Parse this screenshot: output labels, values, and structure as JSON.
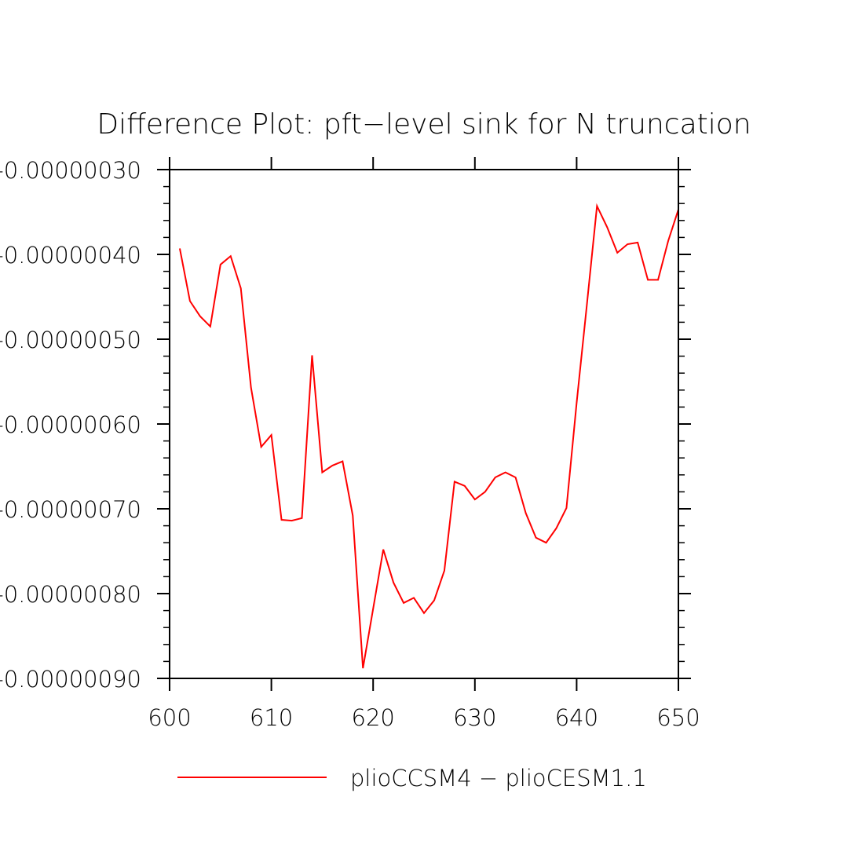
{
  "chart_data": {
    "type": "line",
    "title": "Difference Plot: pft−level sink for N truncation",
    "xlabel": "",
    "ylabel": "",
    "xlim": [
      600,
      650
    ],
    "ylim": [
      -9e-07,
      -3e-07
    ],
    "x_ticks": [
      "600",
      "610",
      "620",
      "630",
      "640",
      "650"
    ],
    "x_tick_values": [
      600,
      610,
      620,
      630,
      640,
      650
    ],
    "y_ticks": [
      "-0.00000030",
      "-0.00000040",
      "-0.00000050",
      "-0.00000060",
      "-0.00000070",
      "-0.00000080",
      "-0.00000090"
    ],
    "y_tick_values": [
      -3e-07,
      -4e-07,
      -5e-07,
      -6e-07,
      -7e-07,
      -8e-07,
      -9e-07
    ],
    "legend_position": "bottom",
    "series": [
      {
        "name": "plioCCSM4 − plioCESM1.1",
        "color": "#ff0000",
        "x": [
          601,
          602,
          603,
          604,
          605,
          606,
          607,
          608,
          609,
          610,
          611,
          612,
          613,
          614,
          615,
          616,
          617,
          618,
          619,
          620,
          621,
          622,
          623,
          624,
          625,
          626,
          627,
          628,
          629,
          630,
          631,
          632,
          633,
          634,
          635,
          636,
          637,
          638,
          639,
          640,
          641,
          642,
          643,
          644,
          645,
          646,
          647,
          648,
          649,
          650
        ],
        "values": [
          -3.93e-07,
          -4.55e-07,
          -4.73e-07,
          -4.85e-07,
          -4.12e-07,
          -4.02e-07,
          -4.4e-07,
          -5.57e-07,
          -6.27e-07,
          -6.13e-07,
          -7.13e-07,
          -7.14e-07,
          -7.11e-07,
          -5.19e-07,
          -6.57e-07,
          -6.49e-07,
          -6.44e-07,
          -7.08e-07,
          -8.88e-07,
          -8.18e-07,
          -7.48e-07,
          -7.87e-07,
          -8.11e-07,
          -8.05e-07,
          -8.23e-07,
          -8.08e-07,
          -7.73e-07,
          -6.68e-07,
          -6.73e-07,
          -6.89e-07,
          -6.8e-07,
          -6.63e-07,
          -6.57e-07,
          -6.63e-07,
          -7.05e-07,
          -7.34e-07,
          -7.4e-07,
          -7.23e-07,
          -6.99e-07,
          -5.75e-07,
          -4.6e-07,
          -3.43e-07,
          -3.68e-07,
          -3.98e-07,
          -3.88e-07,
          -3.86e-07,
          -4.3e-07,
          -4.3e-07,
          -3.84e-07,
          -3.47e-07
        ]
      }
    ]
  }
}
